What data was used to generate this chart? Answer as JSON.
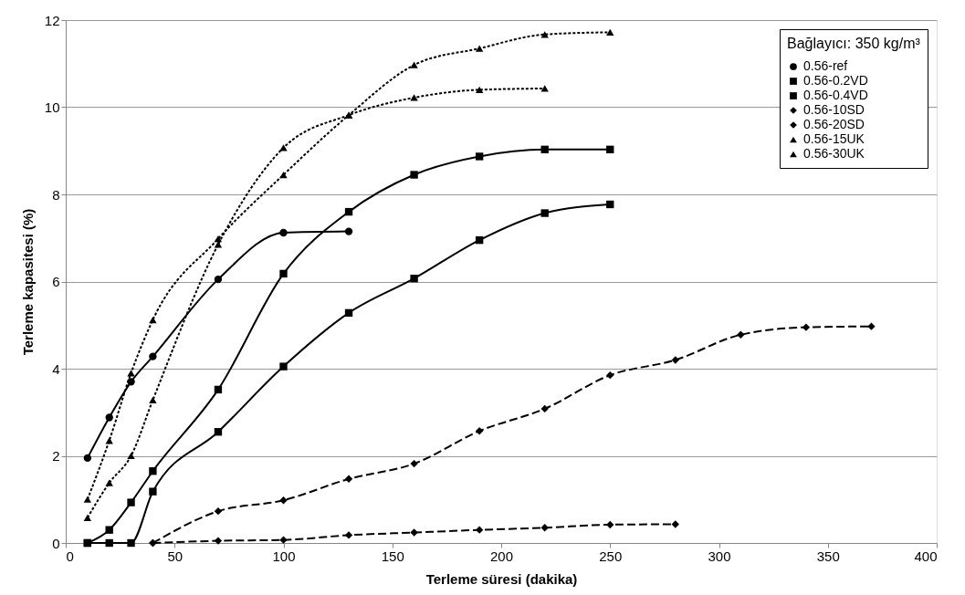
{
  "chart_data": {
    "type": "line",
    "xlabel": "Terleme süresi (dakika)",
    "ylabel": "Terleme kapasitesi (%)",
    "legend_title": "Bağlayıcı: 350 kg/m³",
    "xlim": [
      0,
      400
    ],
    "xticks": [
      0,
      50,
      100,
      150,
      200,
      250,
      300,
      350,
      400
    ],
    "ylim": [
      0,
      12
    ],
    "yticks": [
      0,
      2,
      4,
      6,
      8,
      10,
      12
    ],
    "grid": "y",
    "legend": "top right",
    "series": [
      {
        "name": "0.56-ref",
        "color": "#000000",
        "marker": "circle",
        "line_style": "solid",
        "x": [
          10,
          20,
          30,
          40,
          70,
          100,
          130
        ],
        "values": [
          1.95,
          2.88,
          3.7,
          4.28,
          6.05,
          7.12,
          7.15
        ]
      },
      {
        "name": "0.56-0.2VD",
        "color": "#000000",
        "marker": "square",
        "line_style": "solid",
        "x": [
          10,
          20,
          30,
          40,
          70,
          100,
          130,
          160,
          190,
          220,
          250
        ],
        "values": [
          0,
          0.3,
          0.93,
          1.65,
          3.52,
          6.18,
          7.6,
          8.45,
          8.87,
          9.03,
          9.03
        ]
      },
      {
        "name": "0.56-0.4VD",
        "color": "#000000",
        "marker": "square",
        "line_style": "solid",
        "x": [
          10,
          20,
          30,
          40,
          70,
          100,
          130,
          160,
          190,
          220,
          250
        ],
        "values": [
          0,
          0,
          0,
          1.18,
          2.55,
          4.05,
          5.28,
          6.07,
          6.95,
          7.57,
          7.77
        ]
      },
      {
        "name": "0.56-10SD",
        "color": "#000000",
        "marker": "diamond",
        "line_style": "dashed",
        "x": [
          40,
          70,
          100,
          130,
          160,
          190,
          220,
          250,
          280,
          310,
          340,
          370
        ],
        "values": [
          0,
          0.73,
          0.98,
          1.47,
          1.82,
          2.57,
          3.08,
          3.85,
          4.2,
          4.78,
          4.95,
          4.97
        ]
      },
      {
        "name": "0.56-20SD",
        "color": "#000000",
        "marker": "diamond",
        "line_style": "dashed",
        "x": [
          40,
          70,
          100,
          130,
          160,
          190,
          220,
          250,
          280
        ],
        "values": [
          0,
          0.05,
          0.07,
          0.18,
          0.24,
          0.3,
          0.35,
          0.42,
          0.43
        ]
      },
      {
        "name": "0.56-15UK",
        "color": "#000000",
        "marker": "triangle",
        "line_style": "dotted",
        "x": [
          10,
          20,
          30,
          40,
          70,
          100,
          130,
          160,
          190,
          220
        ],
        "values": [
          0.58,
          1.38,
          2.0,
          3.28,
          6.85,
          9.07,
          9.82,
          10.22,
          10.4,
          10.43
        ]
      },
      {
        "name": "0.56-30UK",
        "color": "#000000",
        "marker": "triangle",
        "line_style": "dotted",
        "x": [
          10,
          20,
          30,
          40,
          70,
          100,
          130,
          160,
          190,
          220,
          250
        ],
        "values": [
          1.0,
          2.35,
          3.9,
          5.12,
          6.98,
          8.45,
          9.82,
          10.97,
          11.35,
          11.67,
          11.72
        ]
      }
    ]
  }
}
